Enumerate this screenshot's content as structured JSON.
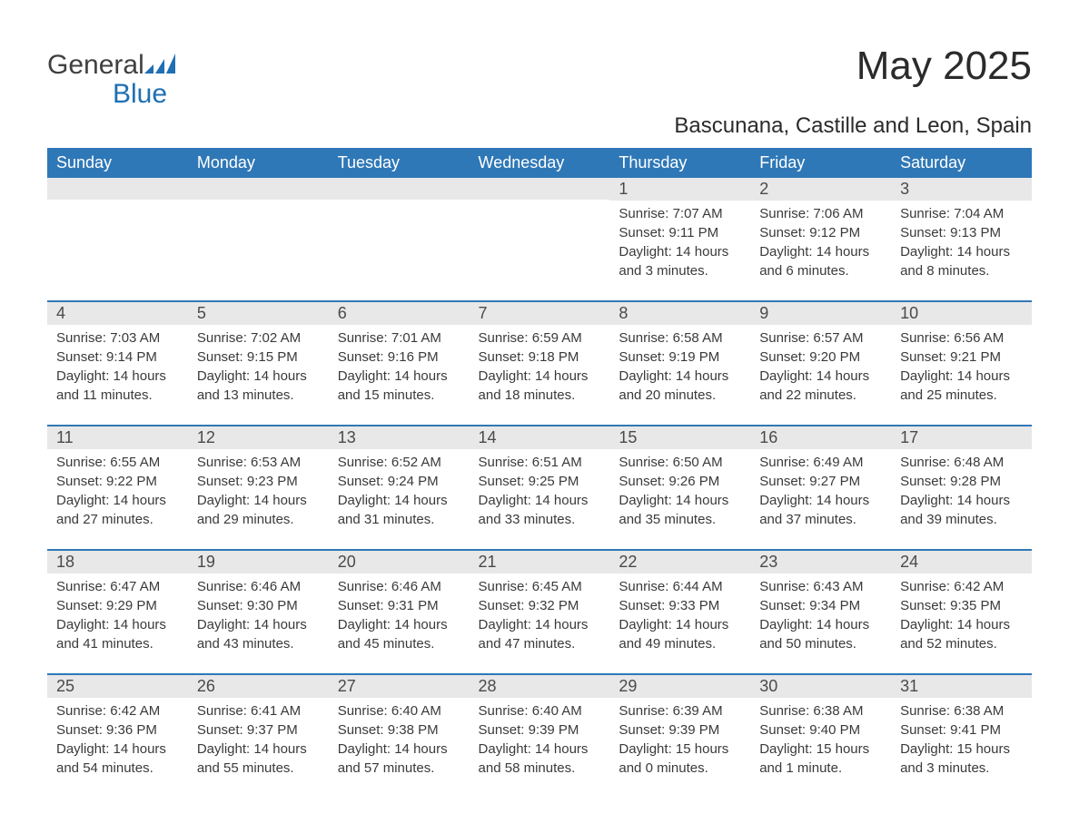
{
  "logo": {
    "word1": "General",
    "word2": "Blue"
  },
  "title": "May 2025",
  "subtitle": "Bascunana, Castille and Leon, Spain",
  "weekday_labels": [
    "Sunday",
    "Monday",
    "Tuesday",
    "Wednesday",
    "Thursday",
    "Friday",
    "Saturday"
  ],
  "colors": {
    "header_bg": "#2f78b7",
    "header_text": "#ffffff",
    "daynum_bg": "#e8e8e8",
    "rule": "#2f78b7",
    "body_text": "#3a3a3a",
    "logo_blue": "#1f6fb2"
  },
  "weeks": [
    [
      {
        "n": "",
        "sunrise": "",
        "sunset": "",
        "daylight": ""
      },
      {
        "n": "",
        "sunrise": "",
        "sunset": "",
        "daylight": ""
      },
      {
        "n": "",
        "sunrise": "",
        "sunset": "",
        "daylight": ""
      },
      {
        "n": "",
        "sunrise": "",
        "sunset": "",
        "daylight": ""
      },
      {
        "n": "1",
        "sunrise": "Sunrise: 7:07 AM",
        "sunset": "Sunset: 9:11 PM",
        "daylight": "Daylight: 14 hours and 3 minutes."
      },
      {
        "n": "2",
        "sunrise": "Sunrise: 7:06 AM",
        "sunset": "Sunset: 9:12 PM",
        "daylight": "Daylight: 14 hours and 6 minutes."
      },
      {
        "n": "3",
        "sunrise": "Sunrise: 7:04 AM",
        "sunset": "Sunset: 9:13 PM",
        "daylight": "Daylight: 14 hours and 8 minutes."
      }
    ],
    [
      {
        "n": "4",
        "sunrise": "Sunrise: 7:03 AM",
        "sunset": "Sunset: 9:14 PM",
        "daylight": "Daylight: 14 hours and 11 minutes."
      },
      {
        "n": "5",
        "sunrise": "Sunrise: 7:02 AM",
        "sunset": "Sunset: 9:15 PM",
        "daylight": "Daylight: 14 hours and 13 minutes."
      },
      {
        "n": "6",
        "sunrise": "Sunrise: 7:01 AM",
        "sunset": "Sunset: 9:16 PM",
        "daylight": "Daylight: 14 hours and 15 minutes."
      },
      {
        "n": "7",
        "sunrise": "Sunrise: 6:59 AM",
        "sunset": "Sunset: 9:18 PM",
        "daylight": "Daylight: 14 hours and 18 minutes."
      },
      {
        "n": "8",
        "sunrise": "Sunrise: 6:58 AM",
        "sunset": "Sunset: 9:19 PM",
        "daylight": "Daylight: 14 hours and 20 minutes."
      },
      {
        "n": "9",
        "sunrise": "Sunrise: 6:57 AM",
        "sunset": "Sunset: 9:20 PM",
        "daylight": "Daylight: 14 hours and 22 minutes."
      },
      {
        "n": "10",
        "sunrise": "Sunrise: 6:56 AM",
        "sunset": "Sunset: 9:21 PM",
        "daylight": "Daylight: 14 hours and 25 minutes."
      }
    ],
    [
      {
        "n": "11",
        "sunrise": "Sunrise: 6:55 AM",
        "sunset": "Sunset: 9:22 PM",
        "daylight": "Daylight: 14 hours and 27 minutes."
      },
      {
        "n": "12",
        "sunrise": "Sunrise: 6:53 AM",
        "sunset": "Sunset: 9:23 PM",
        "daylight": "Daylight: 14 hours and 29 minutes."
      },
      {
        "n": "13",
        "sunrise": "Sunrise: 6:52 AM",
        "sunset": "Sunset: 9:24 PM",
        "daylight": "Daylight: 14 hours and 31 minutes."
      },
      {
        "n": "14",
        "sunrise": "Sunrise: 6:51 AM",
        "sunset": "Sunset: 9:25 PM",
        "daylight": "Daylight: 14 hours and 33 minutes."
      },
      {
        "n": "15",
        "sunrise": "Sunrise: 6:50 AM",
        "sunset": "Sunset: 9:26 PM",
        "daylight": "Daylight: 14 hours and 35 minutes."
      },
      {
        "n": "16",
        "sunrise": "Sunrise: 6:49 AM",
        "sunset": "Sunset: 9:27 PM",
        "daylight": "Daylight: 14 hours and 37 minutes."
      },
      {
        "n": "17",
        "sunrise": "Sunrise: 6:48 AM",
        "sunset": "Sunset: 9:28 PM",
        "daylight": "Daylight: 14 hours and 39 minutes."
      }
    ],
    [
      {
        "n": "18",
        "sunrise": "Sunrise: 6:47 AM",
        "sunset": "Sunset: 9:29 PM",
        "daylight": "Daylight: 14 hours and 41 minutes."
      },
      {
        "n": "19",
        "sunrise": "Sunrise: 6:46 AM",
        "sunset": "Sunset: 9:30 PM",
        "daylight": "Daylight: 14 hours and 43 minutes."
      },
      {
        "n": "20",
        "sunrise": "Sunrise: 6:46 AM",
        "sunset": "Sunset: 9:31 PM",
        "daylight": "Daylight: 14 hours and 45 minutes."
      },
      {
        "n": "21",
        "sunrise": "Sunrise: 6:45 AM",
        "sunset": "Sunset: 9:32 PM",
        "daylight": "Daylight: 14 hours and 47 minutes."
      },
      {
        "n": "22",
        "sunrise": "Sunrise: 6:44 AM",
        "sunset": "Sunset: 9:33 PM",
        "daylight": "Daylight: 14 hours and 49 minutes."
      },
      {
        "n": "23",
        "sunrise": "Sunrise: 6:43 AM",
        "sunset": "Sunset: 9:34 PM",
        "daylight": "Daylight: 14 hours and 50 minutes."
      },
      {
        "n": "24",
        "sunrise": "Sunrise: 6:42 AM",
        "sunset": "Sunset: 9:35 PM",
        "daylight": "Daylight: 14 hours and 52 minutes."
      }
    ],
    [
      {
        "n": "25",
        "sunrise": "Sunrise: 6:42 AM",
        "sunset": "Sunset: 9:36 PM",
        "daylight": "Daylight: 14 hours and 54 minutes."
      },
      {
        "n": "26",
        "sunrise": "Sunrise: 6:41 AM",
        "sunset": "Sunset: 9:37 PM",
        "daylight": "Daylight: 14 hours and 55 minutes."
      },
      {
        "n": "27",
        "sunrise": "Sunrise: 6:40 AM",
        "sunset": "Sunset: 9:38 PM",
        "daylight": "Daylight: 14 hours and 57 minutes."
      },
      {
        "n": "28",
        "sunrise": "Sunrise: 6:40 AM",
        "sunset": "Sunset: 9:39 PM",
        "daylight": "Daylight: 14 hours and 58 minutes."
      },
      {
        "n": "29",
        "sunrise": "Sunrise: 6:39 AM",
        "sunset": "Sunset: 9:39 PM",
        "daylight": "Daylight: 15 hours and 0 minutes."
      },
      {
        "n": "30",
        "sunrise": "Sunrise: 6:38 AM",
        "sunset": "Sunset: 9:40 PM",
        "daylight": "Daylight: 15 hours and 1 minute."
      },
      {
        "n": "31",
        "sunrise": "Sunrise: 6:38 AM",
        "sunset": "Sunset: 9:41 PM",
        "daylight": "Daylight: 15 hours and 3 minutes."
      }
    ]
  ]
}
